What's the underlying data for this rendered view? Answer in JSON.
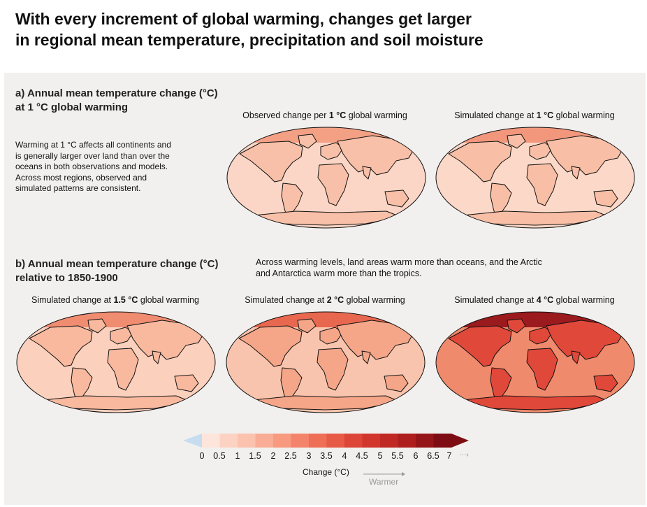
{
  "title": {
    "line1": "With every increment of global warming, changes get larger",
    "line2": "in regional mean temperature, precipitation and soil moisture"
  },
  "section_a": {
    "title_line1": "a) Annual mean temperature change (°C)",
    "title_line2": "at 1 °C global warming",
    "description": [
      "Warming at 1 °C affects all continents and",
      "is generally larger over land than over the",
      "oceans in both observations and models.",
      "Across most regions, observed and",
      "simulated patterns are consistent."
    ],
    "maps": [
      {
        "pre": "Observed change per ",
        "bold": "1 °C",
        "post": " global warming"
      },
      {
        "pre": "Simulated change at ",
        "bold": "1 °C",
        "post": " global warming"
      }
    ]
  },
  "section_b": {
    "title_line1": "b) Annual mean temperature change (°C)",
    "title_line2": "relative to 1850-1900",
    "note_line1": "Across warming levels, land areas warm more than oceans, and the Arctic",
    "note_line2": "and Antarctica warm more than the tropics.",
    "maps": [
      {
        "pre": "Simulated change at ",
        "bold": "1.5 °C",
        "post": " global warming"
      },
      {
        "pre": "Simulated change at ",
        "bold": "2 °C",
        "post": " global warming"
      },
      {
        "pre": "Simulated change at ",
        "bold": "4 °C",
        "post": " global warming"
      }
    ]
  },
  "legend": {
    "ticks": [
      "0",
      "0.5",
      "1",
      "1.5",
      "2",
      "2.5",
      "3",
      "3.5",
      "4",
      "4.5",
      "5",
      "5.5",
      "6",
      "6.5",
      "7"
    ],
    "more_arrow": "···›",
    "label": "Change (°C)",
    "warmer": "Warmer",
    "colors": [
      "#fde5dc",
      "#fcd3c3",
      "#fbc2ad",
      "#f9ad96",
      "#f79a80",
      "#f3846b",
      "#ee6e56",
      "#e75a46",
      "#dd4538",
      "#d1352c",
      "#c02823",
      "#ad1e1d",
      "#961518",
      "#7e0d13"
    ],
    "cold_color": "#c7dcef"
  },
  "maps_style": {
    "obs1": {
      "base": "#fbd6c6",
      "land": "#f8c0a8",
      "arctic": "#f3a085"
    },
    "sim1": {
      "base": "#fcd8c8",
      "land": "#f8bfa6",
      "arctic": "#f2977c"
    },
    "sim15": {
      "base": "#fbd0bd",
      "land": "#f8b99f",
      "arctic": "#f08c70"
    },
    "sim2": {
      "base": "#f9c4ad",
      "land": "#f5a688",
      "arctic": "#e8684f"
    },
    "sim4": {
      "base": "#f08a6c",
      "land": "#e0483a",
      "arctic": "#9b1a1e"
    }
  }
}
